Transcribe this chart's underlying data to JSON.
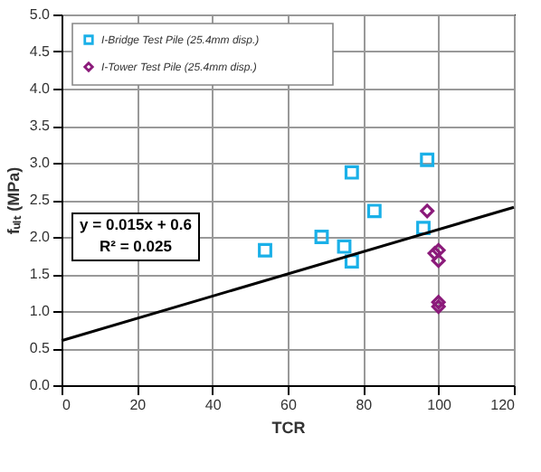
{
  "chart_data": {
    "type": "scatter",
    "xlabel": "TCR",
    "ylabel": "fᵤₗₜ (MPa)",
    "xlim": [
      0,
      120
    ],
    "xticks": [
      0,
      20,
      40,
      60,
      80,
      100,
      120
    ],
    "ylim": [
      0,
      5
    ],
    "yticks": [
      {
        "value": 0,
        "label": "0.0"
      },
      {
        "value": 0.5,
        "label": "0.5"
      },
      {
        "value": 1,
        "label": "1.0"
      },
      {
        "value": 1.5,
        "label": "1.5"
      },
      {
        "value": 2,
        "label": "2.0"
      },
      {
        "value": 2.5,
        "label": "2.5"
      },
      {
        "value": 3,
        "label": "3.0"
      },
      {
        "value": 3.5,
        "label": "3.5"
      },
      {
        "value": 4,
        "label": "4.0"
      },
      {
        "value": 4.5,
        "label": "4.5"
      },
      {
        "value": 5,
        "label": "5.0"
      }
    ],
    "grid": true,
    "legend": "top left",
    "series": [
      {
        "name": "I-Bridge Test Pile (25.4mm disp.)",
        "color": "#1ab0e8",
        "marker": "square",
        "x": [
          54,
          69,
          75,
          77,
          77,
          83,
          96,
          97
        ],
        "values": [
          1.82,
          2.0,
          1.87,
          1.67,
          2.87,
          2.35,
          2.12,
          3.04
        ]
      },
      {
        "name": "I-Tower Test Pile (25.4mm disp.)",
        "color": "#8b1a7a",
        "marker": "diamond",
        "x": [
          97,
          99,
          100,
          100,
          100,
          100
        ],
        "values": [
          2.35,
          1.78,
          1.82,
          1.68,
          1.12,
          1.06
        ]
      },
      {
        "type": "line",
        "color": "#000000",
        "x": [
          0,
          120
        ],
        "values": [
          0.6,
          2.4
        ]
      }
    ],
    "annotations": [
      "y = 0.015x + 0.6\nR² = 0.025"
    ]
  }
}
